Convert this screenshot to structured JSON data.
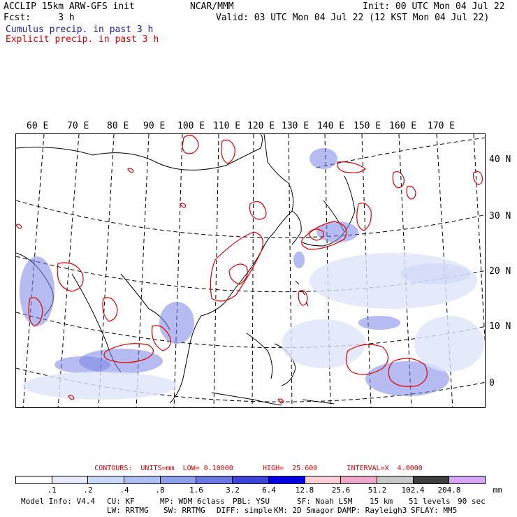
{
  "header": {
    "line1_left": "ACCLIP 15km ARW-GFS init",
    "line1_center": "NCAR/MMM",
    "line1_right": "Init: 00 UTC Mon 04 Jul 22",
    "line2_left": "Fcst:     3 h",
    "line2_right": "Valid: 03 UTC Mon 04 Jul 22 (12 KST Mon 04 Jul 22)",
    "legend_cumulus": "Cumulus precip. in past 3 h",
    "legend_explicit": "Explicit precip. in past 3 h",
    "cumulus_color": "#1a1a9a",
    "explicit_color": "#e00000"
  },
  "map": {
    "lon_labels": [
      "60 E",
      "70 E",
      "80 E",
      "90 E",
      "100 E",
      "110 E",
      "120 E",
      "130 E",
      "140 E",
      "150 E",
      "160 E",
      "170 E"
    ],
    "lat_labels": [
      "40 N",
      "30 N",
      "20 N",
      "10 N",
      "0"
    ]
  },
  "contours": {
    "text": "CONTOURS:  UNITS=mm  LOW= 0.10000       HIGH=  25.600       INTERVAL=X  4.0000"
  },
  "colorbar": {
    "labels": [
      ".1",
      ".2",
      ".4",
      ".8",
      "1.6",
      "3.2",
      "6.4",
      "12.8",
      "25.6",
      "51.2",
      "102.4",
      "204.8"
    ],
    "unit": "mm",
    "colors": [
      "#ffffff",
      "#e6ecfb",
      "#ccd8f7",
      "#aebff1",
      "#8f9fea",
      "#6a79df",
      "#3f45d6",
      "#0000e0",
      "#ffd0d8",
      "#f0a8c8",
      "#c8c8c8",
      "#404040",
      "#d8a8f8"
    ]
  },
  "footer": {
    "line1": [
      "Model Info: V4.4",
      "CU: KF",
      "MP: WDM 6class",
      "PBL: YSU",
      "SF: Noah LSM",
      "15 km",
      "51 levels",
      "90 sec"
    ],
    "line2": [
      "LW: RRTMG",
      "SW: RRTMG",
      "DIFF: simple",
      "KM: 2D Smagor",
      "DAMP: Rayleigh3",
      "SFLAY: MM5"
    ]
  }
}
